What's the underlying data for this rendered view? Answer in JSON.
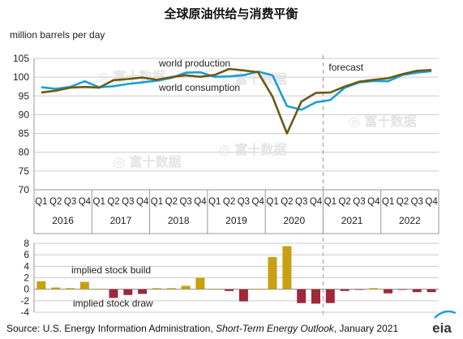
{
  "title": "全球原油供给与消费平衡",
  "unit_label": "million barrels per day",
  "source_prefix": "Source: U.S. Energy Information Administration, ",
  "source_italic": "Short-Term Energy Outlook",
  "source_suffix": ", January 2021",
  "logo_text": "eia",
  "forecast_label": "forecast",
  "watermark": "富十数据",
  "colors": {
    "production": "#1a9fd9",
    "consumption": "#6b5a14",
    "build": "#c9a010",
    "draw": "#a0283a",
    "grid": "#cccccc",
    "forecast_line": "#999999"
  },
  "chart_data": [
    {
      "type": "line",
      "x": [
        "Q1",
        "Q2",
        "Q3",
        "Q4",
        "Q1",
        "Q2",
        "Q3",
        "Q4",
        "Q1",
        "Q2",
        "Q3",
        "Q4",
        "Q1",
        "Q2",
        "Q3",
        "Q4",
        "Q1",
        "Q2",
        "Q3",
        "Q4",
        "Q1",
        "Q2",
        "Q3",
        "Q4",
        "Q1",
        "Q2",
        "Q3",
        "Q4"
      ],
      "years": [
        "2016",
        "2017",
        "2018",
        "2019",
        "2020",
        "2021",
        "2022"
      ],
      "ylim": [
        70,
        105
      ],
      "yticks": [
        70,
        75,
        80,
        85,
        90,
        95,
        100,
        105
      ],
      "forecast_start_index": 20,
      "series": [
        {
          "name": "world production",
          "key": "production",
          "values": [
            97.3,
            96.9,
            97.4,
            98.9,
            97.3,
            97.6,
            98.2,
            98.6,
            99.1,
            99.8,
            101.2,
            101.3,
            100.1,
            100.2,
            100.5,
            101.5,
            100.5,
            92.3,
            91.3,
            93.3,
            93.9,
            97.2,
            98.6,
            99.0,
            98.9,
            100.6,
            101.2,
            101.6
          ]
        },
        {
          "name": "world consumption",
          "key": "consumption",
          "values": [
            95.9,
            96.4,
            97.2,
            97.4,
            97.2,
            99.2,
            99.5,
            99.9,
            99.3,
            100.0,
            100.5,
            100.1,
            100.6,
            102.2,
            101.8,
            101.3,
            94.8,
            85.0,
            93.5,
            95.8,
            95.9,
            97.5,
            98.8,
            99.3,
            99.7,
            100.8,
            101.7,
            101.9
          ]
        }
      ]
    },
    {
      "type": "bar",
      "ylim": [
        -4,
        8
      ],
      "yticks": [
        -4,
        -2,
        0,
        2,
        4,
        6,
        8
      ],
      "labels": {
        "build": "implied stock build",
        "draw": "implied stock draw"
      },
      "values": [
        1.4,
        0.3,
        0.2,
        1.3,
        0.1,
        -1.5,
        -1.0,
        -0.8,
        0.2,
        0.2,
        0.6,
        2.0,
        0.1,
        -0.3,
        -2.1,
        0.1,
        5.6,
        7.5,
        -2.4,
        -2.5,
        -2.4,
        -0.3,
        -0.1,
        0.2,
        -0.7,
        -0.1,
        -0.5,
        -0.5
      ]
    }
  ]
}
